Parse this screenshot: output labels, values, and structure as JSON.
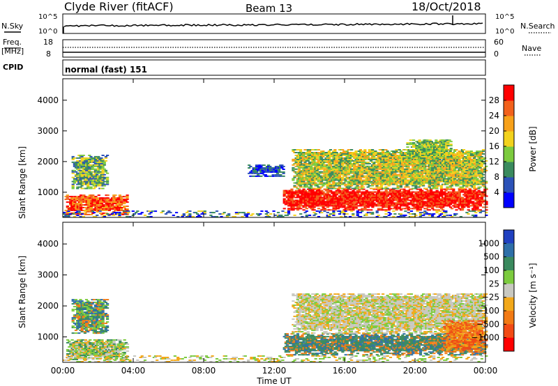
{
  "header": {
    "station": "Clyde River (fitACF)",
    "beam": "Beam 13",
    "date": "18/Oct/2018"
  },
  "nsky_panel": {
    "left_label": "N.Sky",
    "right_label": "N.Search",
    "left_ticks": [
      "10^5",
      "10^0"
    ],
    "right_ticks": [
      "10^5",
      "10^0"
    ]
  },
  "freq_panel": {
    "left_label": "Freq.",
    "left_unit": "[MHz]",
    "right_label": "Nave",
    "left_ticks": [
      "18",
      "8"
    ],
    "right_ticks": [
      "60",
      "0"
    ]
  },
  "cpid": {
    "label": "CPID",
    "mode": "normal (fast) 151"
  },
  "chart_data": [
    {
      "type": "heatmap",
      "title": "Power",
      "ylabel": "Slant Range [km]",
      "colorbar_label": "Power [dB]",
      "y_ticks": [
        1000,
        2000,
        3000,
        4000
      ],
      "ylim": [
        180,
        4700
      ],
      "colorbar_ticks": [
        4,
        8,
        12,
        16,
        20,
        24,
        28
      ],
      "colorbar_colors": [
        "#0000ff",
        "#2c52b8",
        "#3a8a5e",
        "#7ccb3e",
        "#f2d21c",
        "#f7a11a",
        "#f2611c",
        "#ff0000"
      ],
      "x_ticks": [
        "00:00",
        "04:00",
        "08:00",
        "12:00",
        "16:00",
        "20:00",
        "00:00"
      ],
      "xlim_hours": [
        0,
        24
      ],
      "regions": [
        {
          "t": [
            0.1,
            3.6
          ],
          "r": [
            250,
            900
          ],
          "value": "high",
          "colors": [
            "#ff0000",
            "#f2611c",
            "#f7a11a"
          ]
        },
        {
          "t": [
            0.5,
            2.5
          ],
          "r": [
            1100,
            2200
          ],
          "value": "mid",
          "colors": [
            "#3a8a5e",
            "#7ccb3e",
            "#2c52b8",
            "#f2d21c"
          ]
        },
        {
          "t": [
            10.5,
            12.5
          ],
          "r": [
            1500,
            1900
          ],
          "value": "low",
          "colors": [
            "#2c52b8",
            "#3a8a5e",
            "#0000ff"
          ]
        },
        {
          "t": [
            12.5,
            24.0
          ],
          "r": [
            400,
            1100
          ],
          "value": "high",
          "colors": [
            "#ff0000",
            "#ff0000",
            "#f2611c"
          ]
        },
        {
          "t": [
            13.0,
            24.0
          ],
          "r": [
            1100,
            2400
          ],
          "value": "mid",
          "colors": [
            "#f7a11a",
            "#f2d21c",
            "#7ccb3e",
            "#3a8a5e"
          ]
        },
        {
          "t": [
            19.5,
            22.0
          ],
          "r": [
            2000,
            2700
          ],
          "value": "mid",
          "colors": [
            "#7ccb3e",
            "#f2d21c",
            "#3a8a5e"
          ]
        },
        {
          "t": [
            0.0,
            24.0
          ],
          "r": [
            180,
            400
          ],
          "value": "ground",
          "colors": [
            "#2c52b8",
            "#3a8a5e",
            "#f2d21c",
            "#0000ff"
          ]
        }
      ]
    },
    {
      "type": "heatmap",
      "title": "Velocity",
      "ylabel": "Slant Range [km]",
      "colorbar_label": "Velocity [m s⁻¹]",
      "y_ticks": [
        1000,
        2000,
        3000,
        4000
      ],
      "ylim": [
        180,
        4700
      ],
      "colorbar_ticks": [
        "1000",
        "500",
        "100",
        "25",
        "−25",
        "−100",
        "−500",
        "−1000"
      ],
      "colorbar_colors": [
        "#2040c0",
        "#2e6fa8",
        "#3a8a5e",
        "#7ccb3e",
        "#c8c8c0",
        "#f2a81a",
        "#f27a14",
        "#f24a14",
        "#ff0000"
      ],
      "x_ticks": [
        "00:00",
        "04:00",
        "08:00",
        "12:00",
        "16:00",
        "20:00",
        "00:00"
      ],
      "xlabel": "Time UT",
      "xlim_hours": [
        0,
        24
      ],
      "regions": [
        {
          "t": [
            0.2,
            3.6
          ],
          "r": [
            250,
            900
          ],
          "value": "mixed",
          "colors": [
            "#c8c8c0",
            "#3a8a5e",
            "#f2a81a",
            "#7ccb3e"
          ]
        },
        {
          "t": [
            0.5,
            2.5
          ],
          "r": [
            1100,
            2200
          ],
          "value": "mixed",
          "colors": [
            "#3a8a5e",
            "#7ccb3e",
            "#f27a14",
            "#2e6fa8"
          ]
        },
        {
          "t": [
            12.5,
            24.0
          ],
          "r": [
            400,
            1100
          ],
          "value": "mixed",
          "colors": [
            "#3a8a5e",
            "#3a8a5e",
            "#f27a14",
            "#2e6fa8"
          ]
        },
        {
          "t": [
            13.0,
            24.0
          ],
          "r": [
            1100,
            2400
          ],
          "value": "mixed",
          "colors": [
            "#c8c8c0",
            "#c8c8c0",
            "#7ccb3e",
            "#f2a81a"
          ]
        },
        {
          "t": [
            21.5,
            24.0
          ],
          "r": [
            500,
            1500
          ],
          "value": "neg",
          "colors": [
            "#f27a14",
            "#f2a81a",
            "#f24a14"
          ]
        },
        {
          "t": [
            0.0,
            24.0
          ],
          "r": [
            180,
            400
          ],
          "value": "ground",
          "colors": [
            "#c8c8c0",
            "#f2a81a",
            "#7ccb3e"
          ]
        }
      ]
    }
  ]
}
